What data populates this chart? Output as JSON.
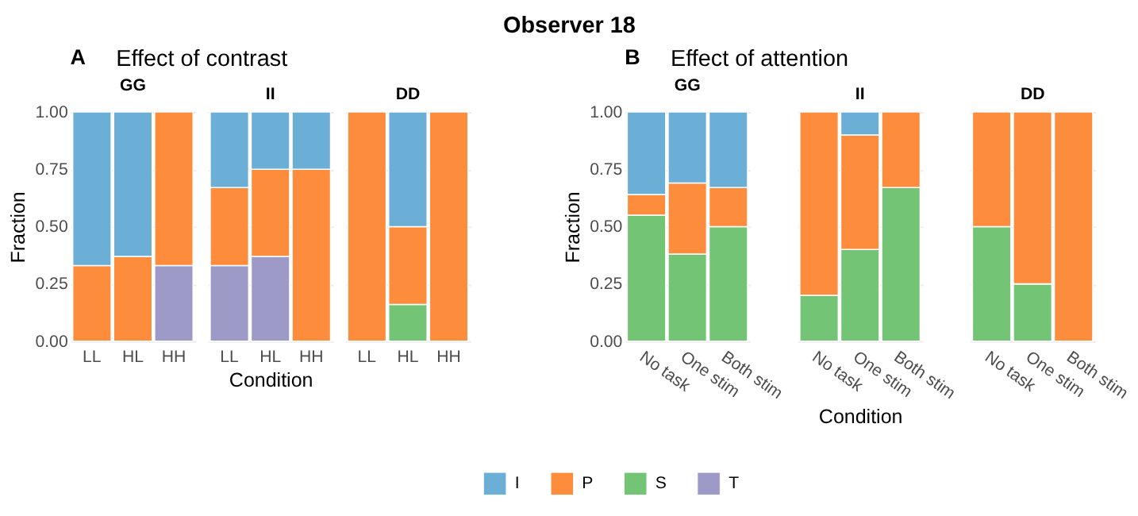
{
  "chart_data": [
    {
      "type": "bar",
      "stacked": true,
      "title": "GG",
      "annotations": [
        "Observer 18",
        "A",
        "Effect of contrast"
      ],
      "ylabel": "Fraction",
      "categories": [
        "LL",
        "HL",
        "HH"
      ],
      "ylim": [
        0,
        1
      ],
      "yticks": [
        {
          "value": 0,
          "label": "0.00"
        },
        {
          "value": 0.25,
          "label": "0.25"
        },
        {
          "value": 0.5,
          "label": "0.50"
        },
        {
          "value": 0.75,
          "label": "0.75"
        },
        {
          "value": 1,
          "label": "1.00"
        }
      ],
      "grid": "y",
      "legend": "bottom",
      "series": [
        {
          "name": "T",
          "color": "#9e9ac8",
          "values": [
            null,
            null,
            0.33
          ]
        },
        {
          "name": "S",
          "color": "#74c476",
          "values": [
            null,
            null,
            null
          ]
        },
        {
          "name": "P",
          "color": "#fd8d3c",
          "values": [
            0.33,
            0.37,
            0.67
          ]
        },
        {
          "name": "I",
          "color": "#6baed6",
          "values": [
            0.67,
            0.63,
            null
          ]
        }
      ]
    },
    {
      "type": "bar",
      "stacked": true,
      "title": "II",
      "xlabel": "Condition",
      "categories": [
        "LL",
        "HL",
        "HH"
      ],
      "ylim": [
        0,
        1
      ],
      "yticks": [
        {
          "value": 0,
          "label": null
        },
        {
          "value": 0.25,
          "label": null
        },
        {
          "value": 0.5,
          "label": null
        },
        {
          "value": 0.75,
          "label": null
        },
        {
          "value": 1,
          "label": null
        }
      ],
      "grid": "y",
      "tick_labels": "x",
      "series": [
        {
          "color": "#9e9ac8",
          "values": [
            0.33,
            0.37,
            null
          ]
        },
        {
          "color": "#fd8d3c",
          "values": [
            0.34,
            0.38,
            0.75
          ]
        },
        {
          "color": "#6baed6",
          "values": [
            0.33,
            0.25,
            0.25
          ]
        }
      ]
    },
    {
      "type": "bar",
      "stacked": true,
      "title": "DD",
      "categories": [
        "LL",
        "HL",
        "HH"
      ],
      "ylim": [
        0,
        1
      ],
      "yticks": [
        {
          "value": 0,
          "label": null
        },
        {
          "value": 0.25,
          "label": null
        },
        {
          "value": 0.5,
          "label": null
        },
        {
          "value": 0.75,
          "label": null
        },
        {
          "value": 1,
          "label": null
        }
      ],
      "grid": "y",
      "tick_labels": "x",
      "series": [
        {
          "color": "#74c476",
          "values": [
            null,
            0.16,
            null
          ]
        },
        {
          "color": "#fd8d3c",
          "values": [
            1,
            0.34,
            1
          ]
        },
        {
          "color": "#6baed6",
          "values": [
            null,
            0.5,
            null
          ]
        }
      ]
    },
    {
      "type": "bar",
      "stacked": true,
      "title": "GG",
      "annotations": [
        "B",
        "Effect of attention"
      ],
      "ylabel": "Fraction",
      "categories": [
        "No task",
        "One stim",
        "Both stim"
      ],
      "ylim": [
        0,
        1
      ],
      "yticks": [
        {
          "value": 0,
          "label": "0.00"
        },
        {
          "value": 0.25,
          "label": "0.25"
        },
        {
          "value": 0.5,
          "label": "0.50"
        },
        {
          "value": 0.75,
          "label": "0.75"
        },
        {
          "value": 1,
          "label": "1.00"
        }
      ],
      "grid": "y",
      "series": [
        {
          "color": "#74c476",
          "values": [
            0.55,
            0.38,
            0.5
          ]
        },
        {
          "color": "#fd8d3c",
          "values": [
            0.09,
            0.31,
            0.17
          ]
        },
        {
          "color": "#6baed6",
          "values": [
            0.36,
            0.31,
            0.33
          ]
        }
      ]
    },
    {
      "type": "bar",
      "stacked": true,
      "title": "II",
      "xlabel": "Condition",
      "categories": [
        "No task",
        "One stim",
        "Both stim"
      ],
      "ylim": [
        0,
        1
      ],
      "yticks": [
        {
          "value": 0,
          "label": null
        },
        {
          "value": 0.25,
          "label": null
        },
        {
          "value": 0.5,
          "label": null
        },
        {
          "value": 0.75,
          "label": null
        },
        {
          "value": 1,
          "label": null
        }
      ],
      "grid": "y",
      "tick_labels": "x",
      "series": [
        {
          "color": "#74c476",
          "values": [
            0.2,
            0.4,
            0.67
          ]
        },
        {
          "color": "#fd8d3c",
          "values": [
            0.8,
            0.5,
            0.33
          ]
        },
        {
          "color": "#6baed6",
          "values": [
            null,
            0.1,
            null
          ]
        }
      ]
    },
    {
      "type": "bar",
      "stacked": true,
      "title": "DD",
      "categories": [
        "No task",
        "One stim",
        "Both stim"
      ],
      "ylim": [
        0,
        1
      ],
      "yticks": [
        {
          "value": 0,
          "label": null
        },
        {
          "value": 0.25,
          "label": null
        },
        {
          "value": 0.5,
          "label": null
        },
        {
          "value": 0.75,
          "label": null
        },
        {
          "value": 1,
          "label": null
        }
      ],
      "grid": "y",
      "tick_labels": "x",
      "series": [
        {
          "color": "#74c476",
          "values": [
            0.5,
            0.25,
            null
          ]
        },
        {
          "color": "#fd8d3c",
          "values": [
            0.5,
            0.75,
            1
          ]
        }
      ]
    }
  ]
}
